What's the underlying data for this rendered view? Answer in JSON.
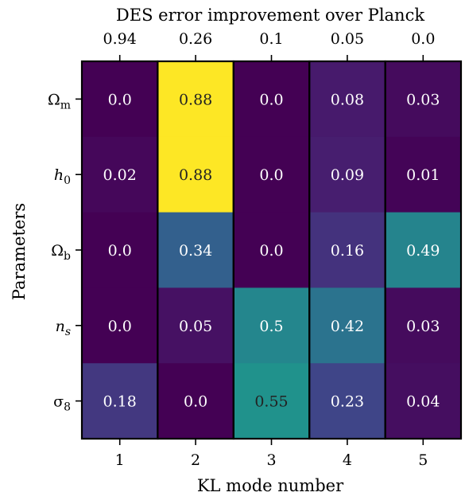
{
  "chart_data": {
    "type": "heatmap",
    "top_title": "DES error improvement over Planck",
    "xlabel": "KL mode number",
    "ylabel": "Parameters",
    "x_categories": [
      "1",
      "2",
      "3",
      "4",
      "5"
    ],
    "top_tick_labels": [
      "0.94",
      "0.26",
      "0.1",
      "0.05",
      "0.0"
    ],
    "y_categories": [
      {
        "base": "Ω",
        "sub": "m",
        "italic": false
      },
      {
        "base": "h",
        "sub": "0",
        "italic": true
      },
      {
        "base": "Ω",
        "sub": "b",
        "italic": false
      },
      {
        "base": "n",
        "sub": "s",
        "italic": true
      },
      {
        "base": "σ",
        "sub": "8",
        "italic": false
      }
    ],
    "values": [
      [
        0.0,
        0.88,
        0.0,
        0.08,
        0.03
      ],
      [
        0.02,
        0.88,
        0.0,
        0.09,
        0.01
      ],
      [
        0.0,
        0.34,
        0.0,
        0.16,
        0.49
      ],
      [
        0.0,
        0.05,
        0.5,
        0.42,
        0.03
      ],
      [
        0.18,
        0.0,
        0.55,
        0.23,
        0.04
      ]
    ],
    "cell_labels": [
      [
        "0.0",
        "0.88",
        "0.0",
        "0.08",
        "0.03"
      ],
      [
        "0.02",
        "0.88",
        "0.0",
        "0.09",
        "0.01"
      ],
      [
        "0.0",
        "0.34",
        "0.0",
        "0.16",
        "0.49"
      ],
      [
        "0.0",
        "0.05",
        "0.5",
        "0.42",
        "0.03"
      ],
      [
        "0.18",
        "0.0",
        "0.55",
        "0.23",
        "0.04"
      ]
    ],
    "colormap": "viridis",
    "value_range": [
      0,
      0.88
    ],
    "grid": false
  }
}
